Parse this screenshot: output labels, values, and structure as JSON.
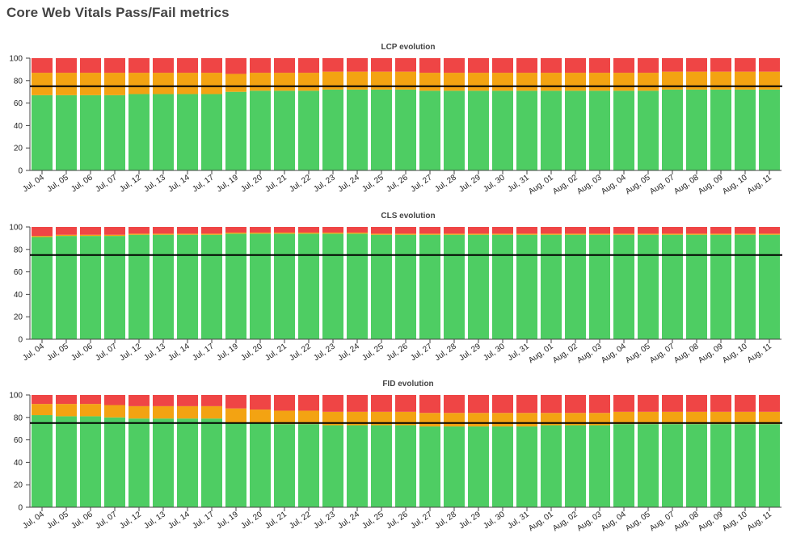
{
  "page": {
    "title": "Core Web Vitals Pass/Fail metrics"
  },
  "colors": {
    "good": "#4ecd63",
    "needs_improvement": "#f3a312",
    "poor": "#ef4545",
    "threshold": "#000000"
  },
  "chart_data": [
    {
      "type": "bar",
      "stacked": true,
      "title": "LCP evolution",
      "categories": [
        "Jul, 04",
        "Jul, 05",
        "Jul, 06",
        "Jul, 07",
        "Jul, 12",
        "Jul, 13",
        "Jul, 14",
        "Jul, 17",
        "Jul, 19",
        "Jul, 20",
        "Jul, 21",
        "Jul, 22",
        "Jul, 23",
        "Jul, 24",
        "Jul, 25",
        "Jul, 26",
        "Jul, 27",
        "Jul, 28",
        "Jul, 29",
        "Jul, 30",
        "Jul, 31",
        "Aug, 01",
        "Aug, 02",
        "Aug, 03",
        "Aug, 04",
        "Aug, 05",
        "Aug, 07",
        "Aug, 08",
        "Aug, 09",
        "Aug, 10",
        "Aug, 11"
      ],
      "series": [
        {
          "values": [
            67,
            67,
            67,
            67,
            68,
            68,
            68,
            68,
            70,
            71,
            71,
            71,
            72,
            72,
            72,
            72,
            71,
            71,
            71,
            71,
            71,
            71,
            71,
            71,
            71,
            71,
            72,
            72,
            72,
            72,
            72
          ]
        },
        {
          "values": [
            20,
            20,
            20,
            20,
            19,
            19,
            19,
            19,
            16,
            16,
            16,
            16,
            16,
            16,
            16,
            16,
            16,
            16,
            16,
            16,
            16,
            16,
            16,
            16,
            16,
            16,
            16,
            16,
            16,
            16,
            16
          ]
        },
        {
          "values": [
            13,
            13,
            13,
            13,
            13,
            13,
            13,
            13,
            14,
            13,
            13,
            13,
            12,
            12,
            12,
            12,
            13,
            13,
            13,
            13,
            13,
            13,
            13,
            13,
            13,
            13,
            12,
            12,
            12,
            12,
            12
          ]
        }
      ],
      "threshold": 75,
      "ylim": [
        0,
        100
      ],
      "yticks": [
        0,
        20,
        40,
        60,
        80,
        100
      ],
      "grid": false
    },
    {
      "type": "bar",
      "stacked": true,
      "title": "CLS evolution",
      "categories": [
        "Jul, 04",
        "Jul, 05",
        "Jul, 06",
        "Jul, 07",
        "Jul, 12",
        "Jul, 13",
        "Jul, 14",
        "Jul, 17",
        "Jul, 19",
        "Jul, 20",
        "Jul, 21",
        "Jul, 22",
        "Jul, 23",
        "Jul, 24",
        "Jul, 25",
        "Jul, 26",
        "Jul, 27",
        "Jul, 28",
        "Jul, 29",
        "Jul, 30",
        "Jul, 31",
        "Aug, 01",
        "Aug, 02",
        "Aug, 03",
        "Aug, 04",
        "Aug, 05",
        "Aug, 07",
        "Aug, 08",
        "Aug, 09",
        "Aug, 10",
        "Aug, 11"
      ],
      "series": [
        {
          "values": [
            91,
            92,
            92,
            92,
            93,
            93,
            93,
            93,
            94,
            94,
            94,
            94,
            94,
            94,
            93,
            93,
            93,
            93,
            93,
            93,
            93,
            93,
            93,
            93,
            93,
            93,
            93,
            93,
            93,
            93,
            93
          ]
        },
        {
          "values": [
            1,
            1,
            1,
            1,
            1,
            1,
            1,
            1,
            1,
            1,
            1,
            1,
            1,
            1,
            1,
            1,
            1,
            1,
            1,
            1,
            1,
            1,
            1,
            1,
            1,
            1,
            1,
            1,
            1,
            1,
            1
          ]
        },
        {
          "values": [
            8,
            7,
            7,
            7,
            6,
            6,
            6,
            6,
            5,
            5,
            5,
            5,
            5,
            5,
            6,
            6,
            6,
            6,
            6,
            6,
            6,
            6,
            6,
            6,
            6,
            6,
            6,
            6,
            6,
            6,
            6
          ]
        }
      ],
      "threshold": 75,
      "ylim": [
        0,
        100
      ],
      "yticks": [
        0,
        20,
        40,
        60,
        80,
        100
      ],
      "grid": false
    },
    {
      "type": "bar",
      "stacked": true,
      "title": "FID evolution",
      "categories": [
        "Jul, 04",
        "Jul, 05",
        "Jul, 06",
        "Jul, 07",
        "Jul, 12",
        "Jul, 13",
        "Jul, 14",
        "Jul, 17",
        "Jul, 19",
        "Jul, 20",
        "Jul, 21",
        "Jul, 22",
        "Jul, 23",
        "Jul, 24",
        "Jul, 25",
        "Jul, 26",
        "Jul, 27",
        "Jul, 28",
        "Jul, 29",
        "Jul, 30",
        "Jul, 31",
        "Aug, 01",
        "Aug, 02",
        "Aug, 03",
        "Aug, 04",
        "Aug, 05",
        "Aug, 07",
        "Aug, 08",
        "Aug, 09",
        "Aug, 10",
        "Aug, 11"
      ],
      "series": [
        {
          "values": [
            82,
            81,
            81,
            80,
            79,
            79,
            79,
            79,
            75,
            75,
            74,
            74,
            73,
            73,
            73,
            73,
            72,
            72,
            72,
            72,
            72,
            73,
            73,
            73,
            74,
            74,
            74,
            74,
            74,
            74,
            74
          ]
        },
        {
          "values": [
            10,
            11,
            11,
            11,
            11,
            11,
            11,
            11,
            13,
            12,
            12,
            12,
            12,
            12,
            12,
            12,
            12,
            12,
            12,
            12,
            12,
            11,
            11,
            11,
            11,
            11,
            11,
            11,
            11,
            11,
            11
          ]
        },
        {
          "values": [
            8,
            8,
            8,
            9,
            10,
            10,
            10,
            10,
            12,
            13,
            14,
            14,
            15,
            15,
            15,
            15,
            16,
            16,
            16,
            16,
            16,
            16,
            16,
            16,
            15,
            15,
            15,
            15,
            15,
            15,
            15
          ]
        }
      ],
      "threshold": 75,
      "ylim": [
        0,
        100
      ],
      "yticks": [
        0,
        20,
        40,
        60,
        80,
        100
      ],
      "grid": false
    }
  ]
}
